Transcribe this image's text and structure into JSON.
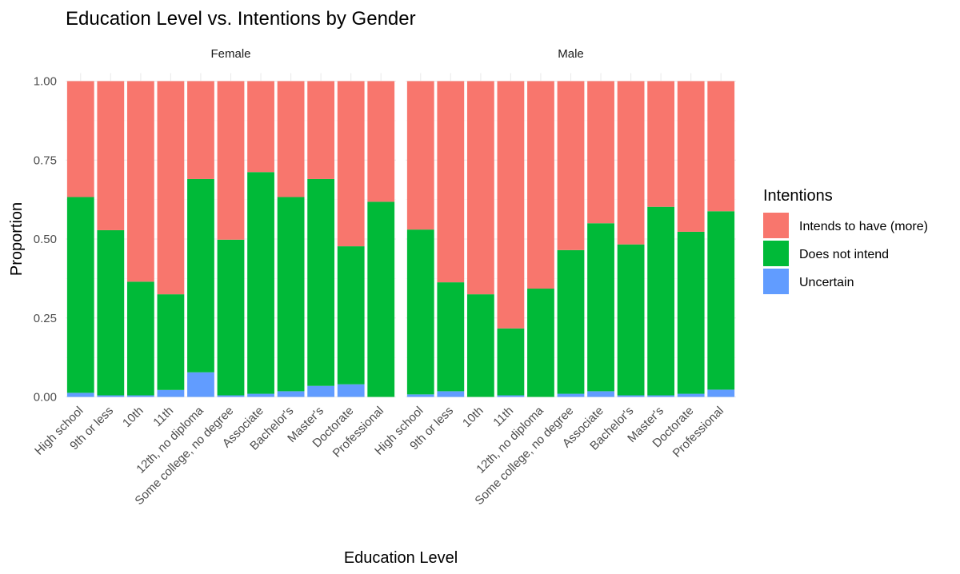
{
  "chart_data": {
    "type": "bar",
    "stacked": true,
    "title": "Education Level vs. Intentions by Gender",
    "xlabel": "Education Level",
    "ylabel": "Proportion",
    "ylim": [
      0,
      1
    ],
    "yticks": [
      "0.00",
      "0.25",
      "0.50",
      "0.75",
      "1.00"
    ],
    "ytick_values": [
      0,
      0.25,
      0.5,
      0.75,
      1.0
    ],
    "grid": true,
    "legend": {
      "title": "Intentions",
      "position": "right",
      "entries": [
        {
          "name": "Intends to have (more)",
          "color": "#F8766D"
        },
        {
          "name": "Does not intend",
          "color": "#00BA38"
        },
        {
          "name": "Uncertain",
          "color": "#619CFF"
        }
      ]
    },
    "categories": [
      "High school",
      "9th or less",
      "10th",
      "11th",
      "12th, no diploma",
      "Some college, no degree",
      "Associate",
      "Bachelor's",
      "Master's",
      "Doctorate",
      "Professional"
    ],
    "panels": [
      {
        "name": "Female",
        "series": [
          {
            "name": "Uncertain",
            "values": [
              0.013,
              0.005,
              0.005,
              0.022,
              0.078,
              0.005,
              0.01,
              0.018,
              0.035,
              0.04,
              0.0
            ]
          },
          {
            "name": "Does not intend",
            "values": [
              0.62,
              0.523,
              0.36,
              0.303,
              0.612,
              0.493,
              0.702,
              0.615,
              0.655,
              0.437,
              0.618
            ]
          },
          {
            "name": "Intends to have (more)",
            "values": [
              0.367,
              0.472,
              0.635,
              0.675,
              0.31,
              0.502,
              0.288,
              0.367,
              0.31,
              0.523,
              0.382
            ]
          }
        ]
      },
      {
        "name": "Male",
        "series": [
          {
            "name": "Uncertain",
            "values": [
              0.008,
              0.018,
              0.0,
              0.005,
              0.0,
              0.01,
              0.018,
              0.005,
              0.005,
              0.01,
              0.023
            ]
          },
          {
            "name": "Does not intend",
            "values": [
              0.522,
              0.345,
              0.325,
              0.212,
              0.343,
              0.455,
              0.532,
              0.478,
              0.597,
              0.513,
              0.565
            ]
          },
          {
            "name": "Intends to have (more)",
            "values": [
              0.47,
              0.637,
              0.675,
              0.783,
              0.657,
              0.535,
              0.45,
              0.517,
              0.398,
              0.477,
              0.412
            ]
          }
        ]
      }
    ]
  }
}
